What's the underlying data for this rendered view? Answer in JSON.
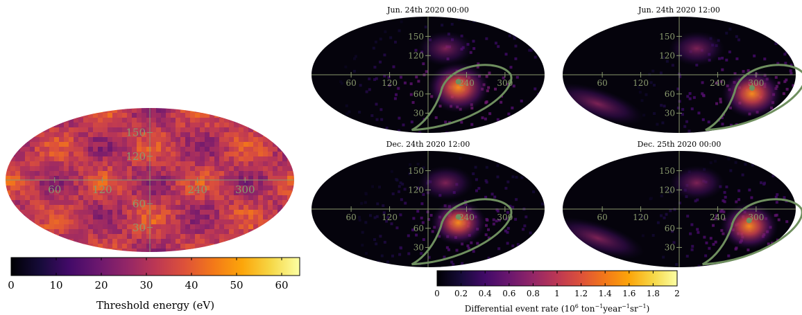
{
  "chart_data": [
    {
      "type": "heatmap",
      "projection": "mollweide",
      "title": "",
      "lon_grid_labels": [
        "60",
        "120",
        "240",
        "300"
      ],
      "lat_grid_labels": [
        "30",
        "60",
        "120",
        "150"
      ],
      "colorbar": {
        "label": "Threshold energy (eV)",
        "range": [
          0,
          64
        ],
        "ticks": [
          "0",
          "10",
          "20",
          "30",
          "40",
          "50",
          "60"
        ],
        "colormap": "inferno"
      },
      "approx_value_range_eV": [
        10,
        45
      ]
    },
    {
      "type": "heatmap",
      "projection": "mollweide",
      "title": "Jun. 24th 2020 00:00",
      "lon_grid_labels": [
        "60",
        "120",
        "240",
        "300"
      ],
      "lat_grid_labels": [
        "30",
        "60",
        "120",
        "150"
      ],
      "colorbar_ref": "shared",
      "hotspot_lon_lat": [
        232,
        62
      ],
      "hotspot_peak_rate": 1.3
    },
    {
      "type": "heatmap",
      "projection": "mollweide",
      "title": "Jun. 24th 2020 12:00",
      "lon_grid_labels": [
        "60",
        "120",
        "240",
        "300"
      ],
      "lat_grid_labels": [
        "30",
        "60",
        "120",
        "150"
      ],
      "colorbar_ref": "shared",
      "hotspot_lon_lat": [
        305,
        48
      ],
      "hotspot_peak_rate": 1.2
    },
    {
      "type": "heatmap",
      "projection": "mollweide",
      "title": "Dec. 24th 2020 12:00",
      "lon_grid_labels": [
        "60",
        "120",
        "240",
        "300"
      ],
      "lat_grid_labels": [
        "30",
        "60",
        "120",
        "150"
      ],
      "colorbar_ref": "shared",
      "hotspot_lon_lat": [
        232,
        60
      ],
      "hotspot_peak_rate": 1.0
    },
    {
      "type": "heatmap",
      "projection": "mollweide",
      "title": "Dec. 25th 2020 00:00",
      "lon_grid_labels": [
        "60",
        "120",
        "240",
        "300"
      ],
      "lat_grid_labels": [
        "30",
        "60",
        "120",
        "150"
      ],
      "colorbar_ref": "shared",
      "hotspot_lon_lat": [
        300,
        52
      ],
      "hotspot_peak_rate": 1.1
    },
    {
      "type": "colorbar",
      "label": "Differential event rate (10^6 ton^-1 year^-1 sr^-1)",
      "label_parts": {
        "a": "Differential event rate (10",
        "exp1": "6",
        "b": " ton",
        "exp2": "−1",
        "c": "year",
        "exp3": "−1",
        "d": "sr",
        "exp4": "−1",
        "e": ")"
      },
      "range": [
        0,
        2
      ],
      "ticks": [
        "0",
        "0.2",
        "0.4",
        "0.6",
        "0.8",
        "1",
        "1.2",
        "1.4",
        "1.6",
        "1.8",
        "2"
      ],
      "colormap": "inferno"
    }
  ],
  "colors": {
    "grid": "#8a9a6e",
    "overlay_curve": "#6f8f5f",
    "background_map": "#05030c"
  }
}
